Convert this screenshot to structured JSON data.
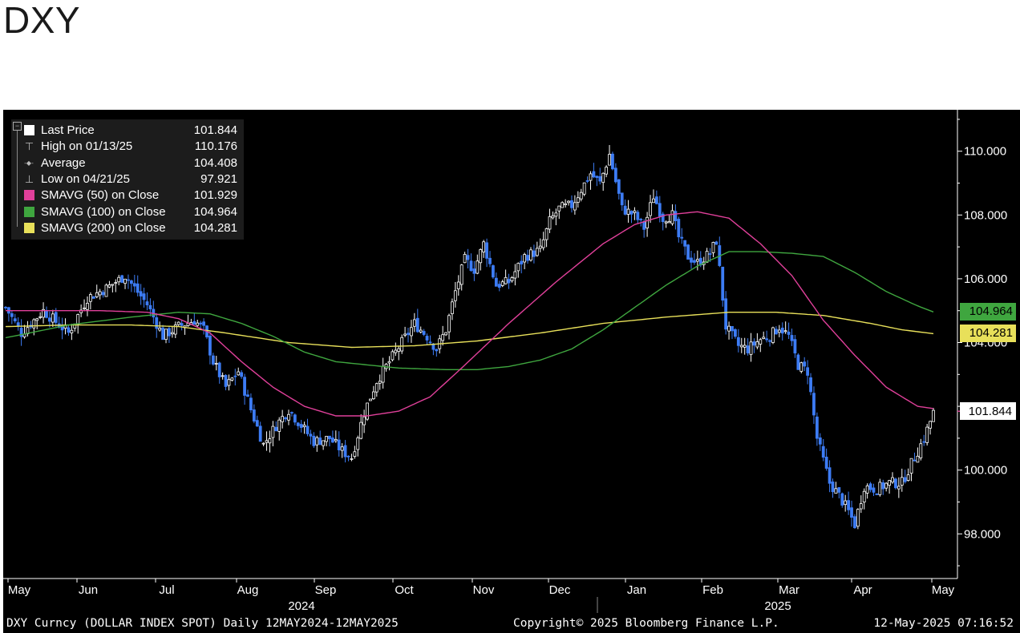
{
  "title": "DXY",
  "chart_data": {
    "type": "candlestick",
    "title": "DXY",
    "ylim": [
      96.6,
      111.3
    ],
    "yticks": [
      98,
      100,
      102,
      104,
      106,
      108,
      110
    ],
    "ytick_labels": [
      "98.000",
      "100.000",
      "102.000",
      "104.000",
      "106.000",
      "108.000",
      "110.000"
    ],
    "x_months": [
      "May",
      "Jun",
      "Jul",
      "Aug",
      "Sep",
      "Oct",
      "Nov",
      "Dec",
      "Jan",
      "Feb",
      "Mar",
      "Apr",
      "May"
    ],
    "x_years": [
      "2024",
      "2025"
    ],
    "x_range": [
      "2024-05-12",
      "2025-05-12"
    ],
    "legend": [
      {
        "label": "Last Price",
        "value": "101.844",
        "color": "#ffffff",
        "symbol": "square"
      },
      {
        "label": "High on 01/13/25",
        "value": "110.176",
        "color": "#bbbbbb",
        "symbol": "high"
      },
      {
        "label": "Average",
        "value": "104.408",
        "color": "#bbbbbb",
        "symbol": "avg"
      },
      {
        "label": "Low on 04/21/25",
        "value": "97.921",
        "color": "#bbbbbb",
        "symbol": "low"
      },
      {
        "label": "SMAVG (50)  on Close",
        "value": "101.929",
        "color": "#e0409a",
        "symbol": "square"
      },
      {
        "label": "SMAVG (100)  on Close",
        "value": "104.964",
        "color": "#3fa63f",
        "symbol": "square"
      },
      {
        "label": "SMAVG (200)  on Close",
        "value": "104.281",
        "color": "#e8e05a",
        "symbol": "square"
      }
    ],
    "price_tags": [
      {
        "value": "104.964",
        "y": 104.964,
        "bg": "#3fa63f",
        "fg": "#000000"
      },
      {
        "value": "104.281",
        "y": 104.281,
        "bg": "#e8e05a",
        "fg": "#000000"
      },
      {
        "value": "101.844",
        "y": 101.844,
        "bg": "#000000",
        "fg": "#ffffff"
      }
    ],
    "close_anchors": [
      [
        0,
        105.1
      ],
      [
        5,
        104.3
      ],
      [
        12,
        105.0
      ],
      [
        20,
        104.3
      ],
      [
        26,
        105.4
      ],
      [
        32,
        105.7
      ],
      [
        38,
        106.1
      ],
      [
        45,
        105.2
      ],
      [
        50,
        104.2
      ],
      [
        55,
        104.5
      ],
      [
        60,
        104.7
      ],
      [
        63,
        104.4
      ],
      [
        66,
        103.4
      ],
      [
        70,
        102.6
      ],
      [
        74,
        103.1
      ],
      [
        78,
        101.9
      ],
      [
        82,
        100.8
      ],
      [
        86,
        101.4
      ],
      [
        90,
        101.9
      ],
      [
        94,
        101.4
      ],
      [
        98,
        100.9
      ],
      [
        103,
        101.0
      ],
      [
        107,
        100.6
      ],
      [
        110,
        100.4
      ],
      [
        114,
        101.8
      ],
      [
        118,
        102.8
      ],
      [
        122,
        103.4
      ],
      [
        126,
        104.0
      ],
      [
        130,
        104.6
      ],
      [
        134,
        104.2
      ],
      [
        137,
        103.8
      ],
      [
        140,
        104.4
      ],
      [
        143,
        105.6
      ],
      [
        146,
        106.6
      ],
      [
        149,
        106.3
      ],
      [
        152,
        107.1
      ],
      [
        156,
        105.8
      ],
      [
        160,
        105.9
      ],
      [
        165,
        106.7
      ],
      [
        170,
        106.9
      ],
      [
        173,
        107.8
      ],
      [
        176,
        108.2
      ],
      [
        180,
        108.3
      ],
      [
        183,
        108.8
      ],
      [
        186,
        109.3
      ],
      [
        189,
        109.0
      ],
      [
        192,
        109.9
      ],
      [
        196,
        108.2
      ],
      [
        200,
        108.0
      ],
      [
        203,
        107.6
      ],
      [
        206,
        108.6
      ],
      [
        209,
        107.9
      ],
      [
        212,
        108.0
      ],
      [
        214,
        107.3
      ],
      [
        217,
        106.7
      ],
      [
        220,
        106.5
      ],
      [
        224,
        106.8
      ],
      [
        226,
        107.2
      ],
      [
        229,
        104.5
      ],
      [
        233,
        103.9
      ],
      [
        236,
        103.8
      ],
      [
        240,
        104.1
      ],
      [
        243,
        104.2
      ],
      [
        246,
        104.5
      ],
      [
        249,
        104.2
      ],
      [
        252,
        103.3
      ],
      [
        255,
        103.1
      ],
      [
        258,
        101.0
      ],
      [
        262,
        99.6
      ],
      [
        265,
        99.2
      ],
      [
        268,
        98.7
      ],
      [
        270,
        98.3
      ],
      [
        273,
        99.5
      ],
      [
        277,
        99.4
      ],
      [
        281,
        99.6
      ],
      [
        285,
        99.6
      ],
      [
        288,
        100.2
      ],
      [
        292,
        101.0
      ],
      [
        295,
        101.8
      ]
    ],
    "sma50": [
      [
        0,
        105.0
      ],
      [
        30,
        105.0
      ],
      [
        45,
        104.95
      ],
      [
        55,
        104.75
      ],
      [
        65,
        104.3
      ],
      [
        75,
        103.4
      ],
      [
        85,
        102.6
      ],
      [
        95,
        102.0
      ],
      [
        105,
        101.7
      ],
      [
        115,
        101.7
      ],
      [
        125,
        101.85
      ],
      [
        135,
        102.3
      ],
      [
        145,
        103.2
      ],
      [
        160,
        104.6
      ],
      [
        175,
        105.9
      ],
      [
        190,
        107.1
      ],
      [
        200,
        107.7
      ],
      [
        210,
        108.0
      ],
      [
        220,
        108.1
      ],
      [
        230,
        107.9
      ],
      [
        240,
        107.1
      ],
      [
        250,
        106.1
      ],
      [
        260,
        104.7
      ],
      [
        270,
        103.6
      ],
      [
        280,
        102.6
      ],
      [
        290,
        102.0
      ],
      [
        295,
        101.93
      ]
    ],
    "sma100": [
      [
        0,
        104.15
      ],
      [
        20,
        104.55
      ],
      [
        40,
        104.8
      ],
      [
        55,
        104.95
      ],
      [
        65,
        104.9
      ],
      [
        75,
        104.6
      ],
      [
        85,
        104.2
      ],
      [
        95,
        103.7
      ],
      [
        105,
        103.4
      ],
      [
        115,
        103.3
      ],
      [
        125,
        103.2
      ],
      [
        140,
        103.15
      ],
      [
        150,
        103.15
      ],
      [
        160,
        103.25
      ],
      [
        170,
        103.45
      ],
      [
        180,
        103.8
      ],
      [
        190,
        104.4
      ],
      [
        200,
        105.1
      ],
      [
        210,
        105.8
      ],
      [
        220,
        106.4
      ],
      [
        230,
        106.85
      ],
      [
        240,
        106.85
      ],
      [
        250,
        106.8
      ],
      [
        260,
        106.7
      ],
      [
        270,
        106.2
      ],
      [
        280,
        105.6
      ],
      [
        290,
        105.15
      ],
      [
        295,
        104.96
      ]
    ],
    "sma200": [
      [
        0,
        104.5
      ],
      [
        20,
        104.55
      ],
      [
        40,
        104.55
      ],
      [
        55,
        104.5
      ],
      [
        70,
        104.3
      ],
      [
        90,
        104.0
      ],
      [
        110,
        103.85
      ],
      [
        130,
        103.9
      ],
      [
        150,
        104.05
      ],
      [
        170,
        104.3
      ],
      [
        190,
        104.6
      ],
      [
        210,
        104.8
      ],
      [
        230,
        104.95
      ],
      [
        245,
        104.95
      ],
      [
        260,
        104.85
      ],
      [
        275,
        104.6
      ],
      [
        285,
        104.4
      ],
      [
        295,
        104.28
      ]
    ],
    "colors": {
      "up": "#ffffff",
      "down": "#3d7cf5",
      "sma50": "#e0409a",
      "sma100": "#3fa63f",
      "sma200": "#e8e05a",
      "axis": "#ffffff"
    }
  },
  "footer": {
    "left": "DXY Curncy (DOLLAR INDEX SPOT)  Daily 12MAY2024-12MAY2025",
    "center": "Copyright© 2025 Bloomberg Finance L.P.",
    "right": "12-May-2025 07:16:52"
  }
}
